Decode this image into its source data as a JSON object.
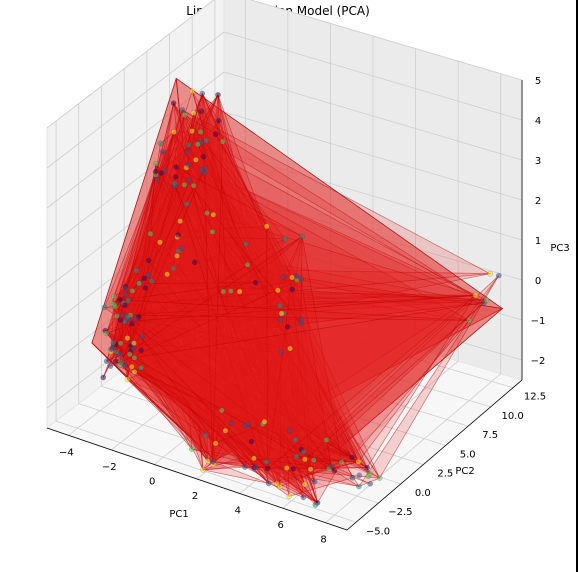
{
  "chart_data": {
    "type": "scatter",
    "projection": "3d",
    "title": "Linear Regression Model (PCA)",
    "xlabel": "PC1",
    "ylabel": "PC2",
    "zlabel": "PC3",
    "xticks": [
      "−4",
      "−2",
      "0",
      "2",
      "4",
      "6",
      "8"
    ],
    "yticks": [
      "−5.0",
      "−2.5",
      "0.0",
      "2.5",
      "5.0",
      "7.5",
      "10.0",
      "12.5"
    ],
    "zticks": [
      "−2",
      "−1",
      "0",
      "1",
      "2",
      "3",
      "4",
      "5"
    ],
    "xlim": [
      -5,
      9
    ],
    "ylim": [
      -6,
      13.5
    ],
    "zlim": [
      -2.5,
      5
    ],
    "grid": true,
    "surface": {
      "description_color": "#e0201c",
      "edge_color": "#b00000"
    },
    "clusters": [
      {
        "x": [
          -4.5,
          -3.5
        ],
        "y": [
          -2,
          2
        ],
        "z": [
          -2.2,
          0.2
        ],
        "n": 60
      },
      {
        "x": [
          -3.2,
          -1.5
        ],
        "y": [
          0,
          6
        ],
        "z": [
          0.5,
          4.5
        ],
        "n": 60
      },
      {
        "x": [
          1,
          8.5
        ],
        "y": [
          -5.5,
          0
        ],
        "z": [
          -2.5,
          -1.8
        ],
        "n": 55
      },
      {
        "x": [
          -1,
          2.5
        ],
        "y": [
          2,
          7
        ],
        "z": [
          -1.0,
          1.5
        ],
        "n": 25
      },
      {
        "x": [
          7,
          9
        ],
        "y": [
          10,
          13
        ],
        "z": [
          -0.8,
          0.2
        ],
        "n": 6
      }
    ],
    "colormap": [
      "#440154",
      "#3b528b",
      "#21918c",
      "#5ec962",
      "#fde725"
    ]
  }
}
